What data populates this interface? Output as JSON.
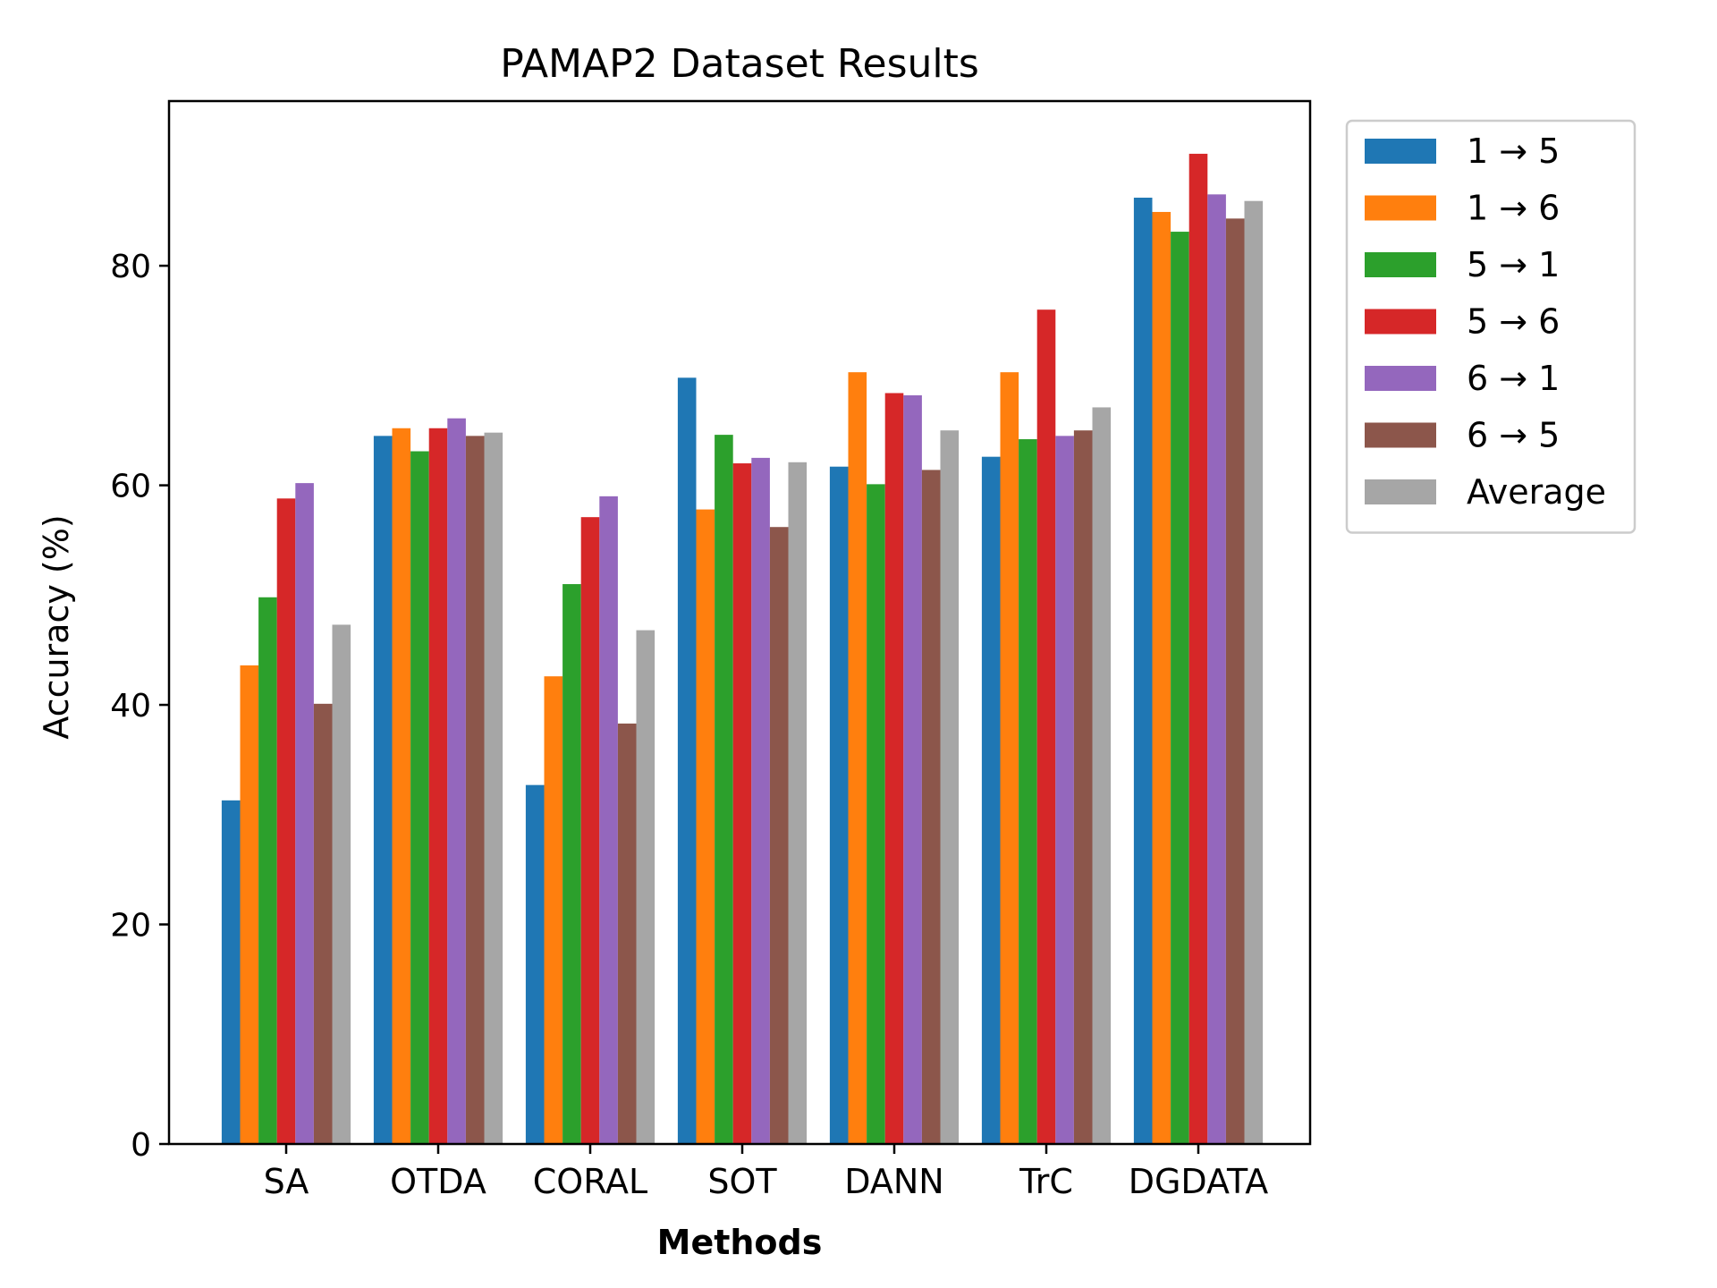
{
  "chart_data": {
    "type": "bar",
    "title": "PAMAP2 Dataset Results",
    "xlabel": "Methods",
    "ylabel": "Accuracy (%)",
    "ylim": [
      0,
      95
    ],
    "yticks": [
      0,
      20,
      40,
      60,
      80
    ],
    "grid": false,
    "legend_position": "outside-top-right",
    "categories": [
      "SA",
      "OTDA",
      "CORAL",
      "SOT",
      "DANN",
      "TrC",
      "DGDATA"
    ],
    "series": [
      {
        "name": "1 → 5",
        "color": "#1f77b4",
        "values": [
          31.3,
          64.5,
          32.7,
          69.8,
          61.7,
          62.6,
          86.2
        ]
      },
      {
        "name": "1 → 6",
        "color": "#ff7f0e",
        "values": [
          43.6,
          65.2,
          42.6,
          57.8,
          70.3,
          70.3,
          84.9
        ]
      },
      {
        "name": "5 → 1",
        "color": "#2ca02c",
        "values": [
          49.8,
          63.1,
          51.0,
          64.6,
          60.1,
          64.2,
          83.1
        ]
      },
      {
        "name": "5 → 6",
        "color": "#d62728",
        "values": [
          58.8,
          65.2,
          57.1,
          62.0,
          68.4,
          76.0,
          90.2
        ]
      },
      {
        "name": "6 → 1",
        "color": "#9467bd",
        "values": [
          60.2,
          66.1,
          59.0,
          62.5,
          68.2,
          64.5,
          86.5
        ]
      },
      {
        "name": "6 → 5",
        "color": "#8c564b",
        "values": [
          40.1,
          64.5,
          38.3,
          56.2,
          61.4,
          65.0,
          84.3
        ]
      },
      {
        "name": "Average",
        "color": "#a6a6a6",
        "values": [
          47.3,
          64.8,
          46.8,
          62.1,
          65.0,
          67.1,
          85.9
        ]
      }
    ]
  }
}
